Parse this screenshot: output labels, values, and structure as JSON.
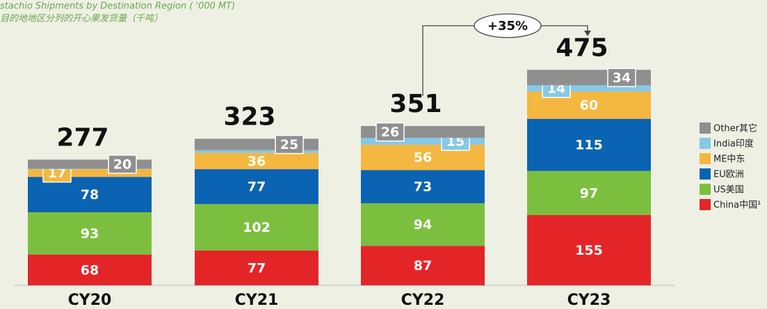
{
  "chart_data": {
    "type": "stacked_bar",
    "title": "stachio Shipments by Destination Region ( '000 MT)",
    "subtitle": "目的地地区分列的开心果发货量（千吨）",
    "categories": [
      "CY20",
      "CY21",
      "CY22",
      "CY23"
    ],
    "series": [
      {
        "name": "China中国¹",
        "color": "#e42528",
        "values": [
          68,
          77,
          87,
          155
        ]
      },
      {
        "name": "US美国",
        "color": "#7cbf3f",
        "values": [
          93,
          102,
          94,
          97
        ]
      },
      {
        "name": "EU欧洲",
        "color": "#0b63b3",
        "values": [
          78,
          77,
          73,
          115
        ]
      },
      {
        "name": "ME中东",
        "color": "#f4b740",
        "values": [
          17,
          36,
          56,
          60
        ]
      },
      {
        "name": "India印度",
        "color": "#86c8e6",
        "values": [
          1,
          6,
          15,
          14
        ],
        "value_labels": [
          null,
          null,
          "15",
          "14"
        ]
      },
      {
        "name": "Other其它",
        "color": "#8f8f8f",
        "values": [
          20,
          25,
          26,
          34
        ]
      }
    ],
    "totals": [
      277,
      323,
      351,
      475
    ],
    "annotation": "+35%",
    "ylim": [
      0,
      500
    ],
    "legend": "right"
  }
}
